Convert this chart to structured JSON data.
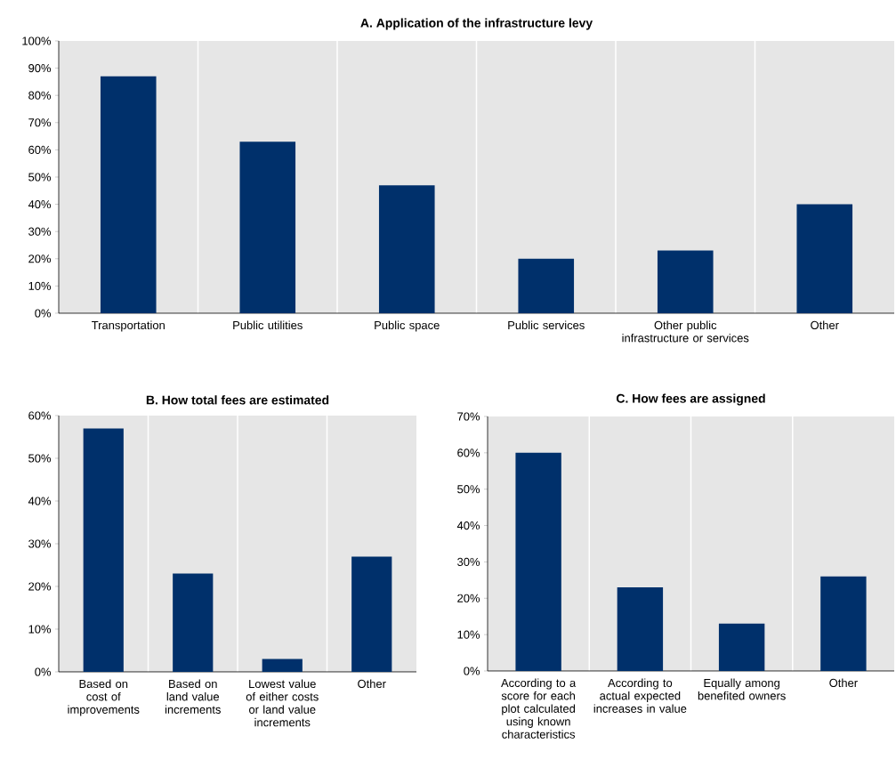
{
  "chart_data": [
    {
      "type": "bar",
      "title": "A. Application of the infrastructure levy",
      "categories": [
        "Transportation",
        "Public utilities",
        "Public space",
        "Public services",
        "Other public infrastructure or services",
        "Other"
      ],
      "values": [
        87,
        63,
        47,
        20,
        23,
        40
      ],
      "color": "#00306b",
      "ylim": [
        0,
        100
      ],
      "yticks": [
        {
          "value": 0,
          "label": "0%"
        },
        {
          "value": 10,
          "label": "10%"
        },
        {
          "value": 20,
          "label": "20%"
        },
        {
          "value": 30,
          "label": "30%"
        },
        {
          "value": 40,
          "label": "40%"
        },
        {
          "value": 50,
          "label": "50%"
        },
        {
          "value": 60,
          "label": "60%"
        },
        {
          "value": 70,
          "label": "70%"
        },
        {
          "value": 80,
          "label": "80%"
        },
        {
          "value": 90,
          "label": "90%"
        },
        {
          "value": 100,
          "label": "100%"
        }
      ],
      "grid": "x"
    },
    {
      "type": "bar",
      "title": "B. How total fees are estimated",
      "categories": [
        "Based on cost of improvements",
        "Based on land value increments",
        "Lowest value of either costs or land value increments",
        "Other"
      ],
      "values": [
        57,
        23,
        3,
        27
      ],
      "color": "#00306b",
      "ylim": [
        0,
        60
      ],
      "yticks": [
        {
          "value": 0,
          "label": "0%"
        },
        {
          "value": 10,
          "label": "10%"
        },
        {
          "value": 20,
          "label": "20%"
        },
        {
          "value": 30,
          "label": "30%"
        },
        {
          "value": 40,
          "label": "40%"
        },
        {
          "value": 50,
          "label": "50%"
        },
        {
          "value": 60,
          "label": "60%"
        }
      ],
      "grid": "x"
    },
    {
      "type": "bar",
      "title": "C. How fees are assigned",
      "categories": [
        "According to a score for each plot calculated using known characteristics",
        "According to actual expected increases in value",
        "Equally among benefited owners",
        "Other"
      ],
      "values": [
        60,
        23,
        13,
        26
      ],
      "color": "#00306b",
      "ylim": [
        0,
        70
      ],
      "yticks": [
        {
          "value": 0,
          "label": "0%"
        },
        {
          "value": 10,
          "label": "10%"
        },
        {
          "value": 20,
          "label": "20%"
        },
        {
          "value": 30,
          "label": "30%"
        },
        {
          "value": 40,
          "label": "40%"
        },
        {
          "value": 50,
          "label": "50%"
        },
        {
          "value": 60,
          "label": "60%"
        },
        {
          "value": 70,
          "label": "70%"
        }
      ],
      "grid": "x"
    }
  ]
}
